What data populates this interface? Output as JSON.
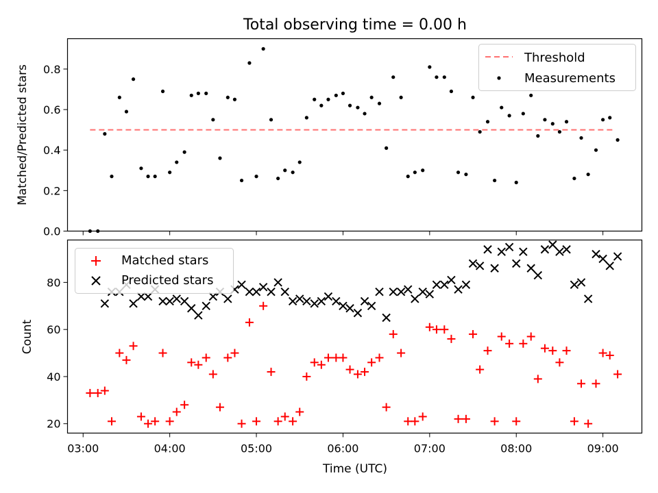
{
  "chart_data": [
    {
      "type": "scatter",
      "title": "Total observing time = 0.00 h",
      "xlabel": "",
      "ylabel": "Matched/Predicted stars",
      "x_unit": "hours UTC",
      "xlim": [
        2.82,
        9.45
      ],
      "ylim": [
        0,
        0.95
      ],
      "yticks": [
        0.0,
        0.2,
        0.4,
        0.6,
        0.8
      ],
      "ytick_labels": [
        "0.0",
        "0.2",
        "0.4",
        "0.6",
        "0.8"
      ],
      "grid": false,
      "legend": "upper-right",
      "series": [
        {
          "name": "Threshold",
          "kind": "line",
          "style": "dashed",
          "color": "#ff7070",
          "x": [
            3.08,
            9.12
          ],
          "y": [
            0.5,
            0.5
          ]
        },
        {
          "name": "Measurements",
          "kind": "scatter",
          "marker": "dot",
          "color": "#000000",
          "x": [
            3.08,
            3.17,
            3.25,
            3.33,
            3.42,
            3.5,
            3.58,
            3.67,
            3.75,
            3.83,
            3.92,
            4.0,
            4.08,
            4.17,
            4.25,
            4.33,
            4.42,
            4.5,
            4.58,
            4.67,
            4.75,
            4.83,
            4.92,
            5.0,
            5.08,
            5.17,
            5.25,
            5.33,
            5.42,
            5.5,
            5.58,
            5.67,
            5.75,
            5.83,
            5.92,
            6.0,
            6.08,
            6.17,
            6.25,
            6.33,
            6.42,
            6.5,
            6.58,
            6.67,
            6.75,
            6.83,
            6.92,
            7.0,
            7.08,
            7.17,
            7.25,
            7.33,
            7.42,
            7.5,
            7.58,
            7.67,
            7.75,
            7.83,
            7.92,
            8.0,
            8.08,
            8.17,
            8.25,
            8.33,
            8.42,
            8.5,
            8.58,
            8.67,
            8.75,
            8.83,
            8.92,
            9.0,
            9.08,
            9.17
          ],
          "y": [
            0.0,
            0.0,
            0.48,
            0.27,
            0.66,
            0.59,
            0.75,
            0.31,
            0.27,
            0.27,
            0.69,
            0.29,
            0.34,
            0.39,
            0.67,
            0.68,
            0.68,
            0.55,
            0.36,
            0.66,
            0.65,
            0.25,
            0.83,
            0.27,
            0.9,
            0.55,
            0.26,
            0.3,
            0.29,
            0.34,
            0.56,
            0.65,
            0.62,
            0.65,
            0.67,
            0.68,
            0.62,
            0.61,
            0.58,
            0.66,
            0.63,
            0.41,
            0.76,
            0.66,
            0.27,
            0.29,
            0.3,
            0.81,
            0.76,
            0.76,
            0.69,
            0.29,
            0.28,
            0.66,
            0.49,
            0.54,
            0.25,
            0.61,
            0.57,
            0.24,
            0.58,
            0.67,
            0.47,
            0.55,
            0.53,
            0.49,
            0.54,
            0.26,
            0.46,
            0.28,
            0.4,
            0.55,
            0.56,
            0.45
          ]
        }
      ]
    },
    {
      "type": "scatter",
      "title": "",
      "xlabel": "Time (UTC)",
      "ylabel": "Count",
      "x_unit": "hours UTC",
      "xlim": [
        2.82,
        9.45
      ],
      "ylim": [
        16,
        98
      ],
      "xticks": [
        3,
        4,
        5,
        6,
        7,
        8,
        9
      ],
      "xtick_labels": [
        "03:00",
        "04:00",
        "05:00",
        "06:00",
        "07:00",
        "08:00",
        "09:00"
      ],
      "yticks": [
        20,
        40,
        60,
        80
      ],
      "ytick_labels": [
        "20",
        "40",
        "60",
        "80"
      ],
      "grid": false,
      "legend": "upper-left",
      "series": [
        {
          "name": "Matched stars",
          "kind": "scatter",
          "marker": "plus",
          "color": "#ff0000",
          "x": [
            3.08,
            3.17,
            3.25,
            3.33,
            3.42,
            3.5,
            3.58,
            3.67,
            3.75,
            3.83,
            3.92,
            4.0,
            4.08,
            4.17,
            4.25,
            4.33,
            4.42,
            4.5,
            4.58,
            4.67,
            4.75,
            4.83,
            4.92,
            5.0,
            5.08,
            5.17,
            5.25,
            5.33,
            5.42,
            5.5,
            5.58,
            5.67,
            5.75,
            5.83,
            5.92,
            6.0,
            6.08,
            6.17,
            6.25,
            6.33,
            6.42,
            6.5,
            6.58,
            6.67,
            6.75,
            6.83,
            6.92,
            7.0,
            7.08,
            7.17,
            7.25,
            7.33,
            7.42,
            7.5,
            7.58,
            7.67,
            7.75,
            7.83,
            7.92,
            8.0,
            8.08,
            8.17,
            8.25,
            8.33,
            8.42,
            8.5,
            8.58,
            8.67,
            8.75,
            8.83,
            8.92,
            9.0,
            9.08,
            9.17
          ],
          "y": [
            33,
            33,
            34,
            21,
            50,
            47,
            53,
            23,
            20,
            21,
            50,
            21,
            25,
            28,
            46,
            45,
            48,
            41,
            27,
            48,
            50,
            20,
            63,
            21,
            70,
            42,
            21,
            23,
            21,
            25,
            40,
            46,
            45,
            48,
            48,
            48,
            43,
            41,
            42,
            46,
            48,
            27,
            58,
            50,
            21,
            21,
            23,
            61,
            60,
            60,
            56,
            22,
            22,
            58,
            43,
            51,
            21,
            57,
            54,
            21,
            54,
            57,
            39,
            52,
            51,
            46,
            51,
            21,
            37,
            20,
            37,
            50,
            49,
            41
          ]
        },
        {
          "name": "Predicted stars",
          "kind": "scatter",
          "marker": "x",
          "color": "#000000",
          "x": [
            3.25,
            3.33,
            3.42,
            3.5,
            3.58,
            3.67,
            3.75,
            3.83,
            3.92,
            4.0,
            4.08,
            4.17,
            4.25,
            4.33,
            4.42,
            4.5,
            4.58,
            4.67,
            4.75,
            4.83,
            4.92,
            5.0,
            5.08,
            5.17,
            5.25,
            5.33,
            5.42,
            5.5,
            5.58,
            5.67,
            5.75,
            5.83,
            5.92,
            6.0,
            6.08,
            6.17,
            6.25,
            6.33,
            6.42,
            6.5,
            6.58,
            6.67,
            6.75,
            6.83,
            6.92,
            7.0,
            7.08,
            7.17,
            7.25,
            7.33,
            7.42,
            7.5,
            7.58,
            7.67,
            7.75,
            7.83,
            7.92,
            8.0,
            8.08,
            8.17,
            8.25,
            8.33,
            8.42,
            8.5,
            8.58,
            8.67,
            8.75,
            8.83,
            8.92,
            9.0,
            9.08,
            9.17
          ],
          "y": [
            71,
            76,
            76,
            79,
            71,
            74,
            74,
            77,
            72,
            72,
            73,
            72,
            69,
            66,
            70,
            74,
            76,
            73,
            77,
            79,
            76,
            76,
            78,
            76,
            80,
            76,
            72,
            73,
            72,
            71,
            72,
            74,
            72,
            70,
            69,
            67,
            72,
            70,
            76,
            65,
            76,
            76,
            77,
            73,
            76,
            75,
            79,
            79,
            81,
            77,
            79,
            88,
            87,
            94,
            86,
            93,
            95,
            88,
            93,
            86,
            83,
            94,
            96,
            93,
            94,
            79,
            80,
            73,
            92,
            90,
            87,
            91
          ]
        }
      ]
    }
  ]
}
